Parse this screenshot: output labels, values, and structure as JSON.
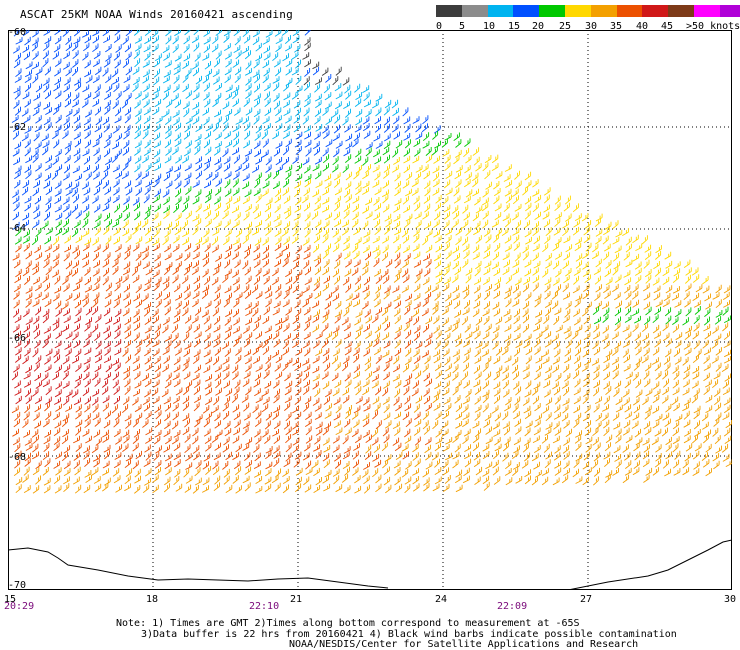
{
  "title": "ASCAT 25KM NOAA Winds 20160421 ascending",
  "colorbar": {
    "colors": [
      "#3c3c3c",
      "#8c8c8c",
      "#00b4f0",
      "#0050ff",
      "#00c800",
      "#ffd800",
      "#f3a000",
      "#ec5000",
      "#d01818",
      "#7d3a18",
      "#ff00ff",
      "#b000d8",
      "#500090"
    ],
    "labels": [
      "0",
      "5",
      "10",
      "15",
      "20",
      "25",
      "30",
      "35",
      "40",
      "45",
      ">50 knots"
    ]
  },
  "lat_labels": [
    "-60",
    "-62",
    "-64",
    "-66",
    "-68",
    "-70"
  ],
  "lon_labels": [
    "15",
    "18",
    "21",
    "24",
    "27",
    "30"
  ],
  "time_labels": [
    "20:29",
    "22:10",
    "22:09"
  ],
  "notes": [
    "Note: 1) Times are GMT 2)Times along bottom correspond to measurement at -65S",
    "3)Data buffer is 22 hrs from 20160421 4) Black wind barbs indicate possible contamination",
    "NOAA/NESDIS/Center for Satellite Applications and Research"
  ]
}
